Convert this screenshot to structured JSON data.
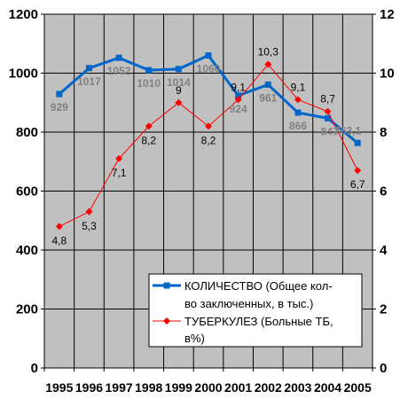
{
  "chart_data": {
    "type": "line",
    "categories": [
      "1995",
      "1996",
      "1997",
      "1998",
      "1999",
      "2000",
      "2001",
      "2002",
      "2003",
      "2004",
      "2005"
    ],
    "series": [
      {
        "name": "КОЛИЧЕСТВО (Общее кол-во заключенных, в тыс.)",
        "axis": "left",
        "color": "#0066cc",
        "marker": "square",
        "values": [
          929,
          1017,
          1052,
          1010,
          1014,
          1060,
          924,
          961,
          866,
          847,
          763.1
        ],
        "labels": [
          "929",
          "1017",
          "1052",
          "1010",
          "1014",
          "1060",
          "924",
          "961",
          "866",
          "847",
          "763,1"
        ]
      },
      {
        "name": "ТУБЕРКУЛЕЗ (Больные ТБ, в%)",
        "axis": "right",
        "color": "#ff0000",
        "marker": "diamond",
        "values": [
          4.8,
          5.3,
          7.1,
          8.2,
          9,
          8.2,
          9.1,
          10.3,
          9.1,
          8.7,
          6.7
        ],
        "labels": [
          "4,8",
          "5,3",
          "7,1",
          "8,2",
          "9",
          "8,2",
          "9,1",
          "10,3",
          "9,1",
          "8,7",
          "6,7"
        ]
      }
    ],
    "y_left": {
      "range": [
        0,
        1200
      ],
      "ticks": [
        "0",
        "200",
        "400",
        "600",
        "800",
        "1000",
        "1200"
      ]
    },
    "y_right": {
      "range": [
        0,
        12
      ],
      "ticks": [
        "0",
        "2",
        "4",
        "6",
        "8",
        "10",
        "12"
      ]
    },
    "grid": true,
    "legend": {
      "placement": "bottom-right",
      "lines": [
        [
          "КОЛИЧЕСТВО (Общее кол-",
          "во заключенных, в тыс.)"
        ],
        [
          "ТУБЕРКУЛЕЗ (Больные ТБ,",
          "в%)"
        ]
      ]
    },
    "colors": {
      "plot_background": "#c0c0c0",
      "gridlines": "#000000",
      "page_background": "#ffffff"
    }
  }
}
